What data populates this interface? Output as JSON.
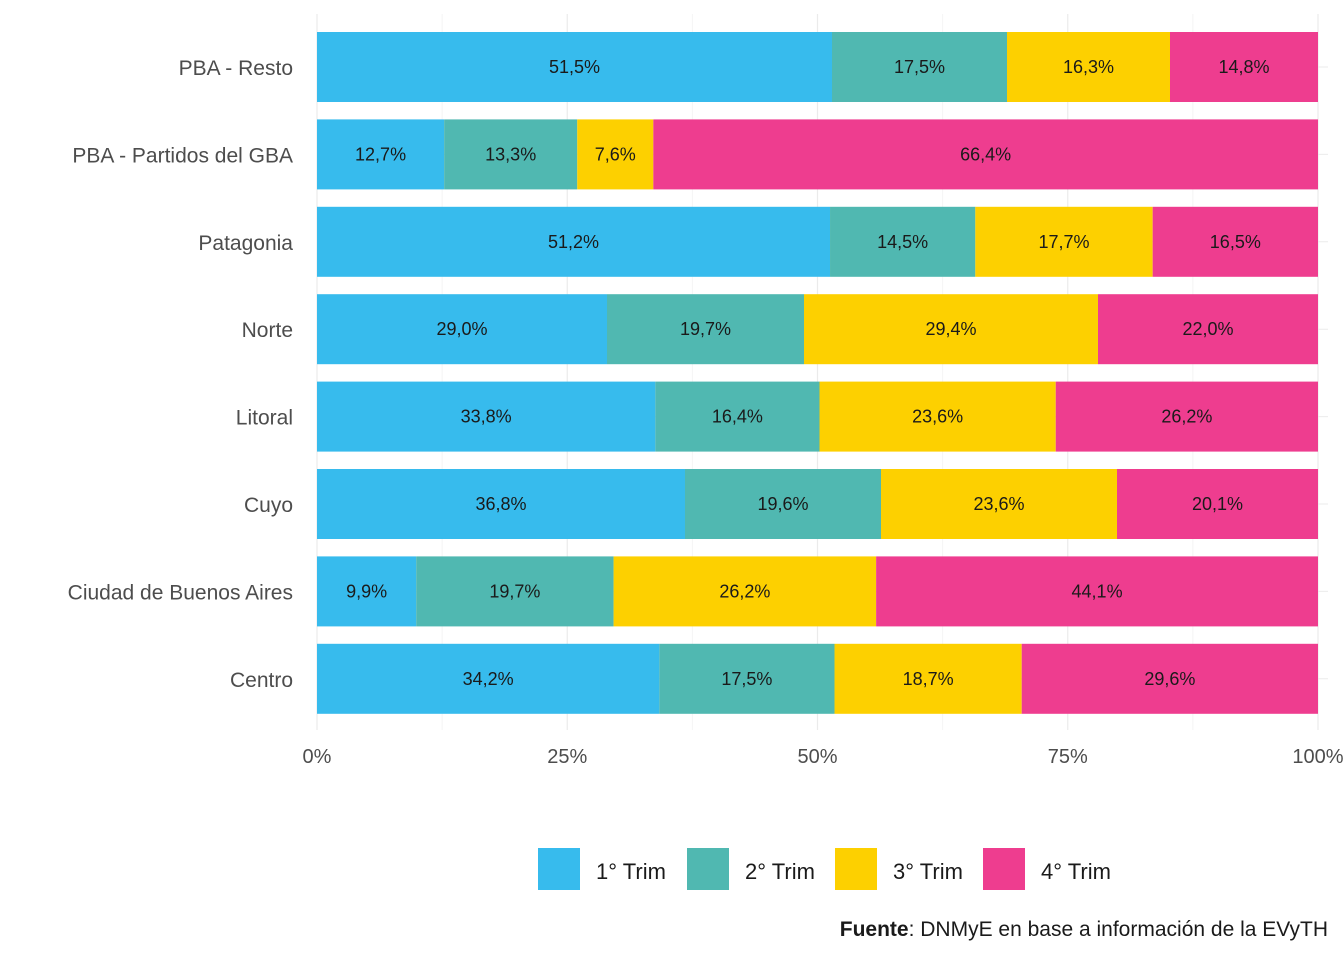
{
  "chart_data": {
    "type": "bar",
    "orientation": "horizontal",
    "stacked": true,
    "categories": [
      "PBA - Resto",
      "PBA - Partidos del GBA",
      "Patagonia",
      "Norte",
      "Litoral",
      "Cuyo",
      "Ciudad de Buenos Aires",
      "Centro"
    ],
    "series": [
      {
        "name": "1° Trim",
        "color": "#37BBED",
        "values": [
          51.5,
          12.7,
          51.2,
          29.0,
          33.8,
          36.8,
          9.9,
          34.2
        ],
        "labels": [
          "51,5%",
          "12,7%",
          "51,2%",
          "29,0%",
          "33,8%",
          "36,8%",
          "9,9%",
          "34,2%"
        ]
      },
      {
        "name": "2° Trim",
        "color": "#50B8B1",
        "values": [
          17.5,
          13.3,
          14.5,
          19.7,
          16.4,
          19.6,
          19.7,
          17.5
        ],
        "labels": [
          "17,5%",
          "13,3%",
          "14,5%",
          "19,7%",
          "16,4%",
          "19,6%",
          "19,7%",
          "17,5%"
        ]
      },
      {
        "name": "3° Trim",
        "color": "#FDD000",
        "values": [
          16.3,
          7.6,
          17.7,
          29.4,
          23.6,
          23.6,
          26.2,
          18.7
        ],
        "labels": [
          "16,3%",
          "7,6%",
          "17,7%",
          "29,4%",
          "23,6%",
          "23,6%",
          "26,2%",
          "18,7%"
        ]
      },
      {
        "name": "4° Trim",
        "color": "#EE3D8F",
        "values": [
          14.8,
          66.4,
          16.5,
          22.0,
          26.2,
          20.1,
          44.1,
          29.6
        ],
        "labels": [
          "14,8%",
          "66,4%",
          "16,5%",
          "22,0%",
          "26,2%",
          "20,1%",
          "44,1%",
          "29,6%"
        ]
      }
    ],
    "x_ticks": [
      "0%",
      "25%",
      "50%",
      "75%",
      "100%"
    ],
    "xlim": [
      0,
      100
    ],
    "grid": true,
    "legend_position": "bottom"
  },
  "source": {
    "label": "Fuente",
    "text": ": DNMyE en base a información de la EVyTH"
  }
}
